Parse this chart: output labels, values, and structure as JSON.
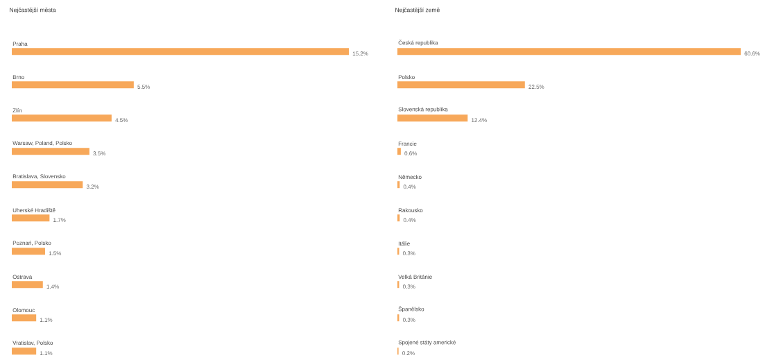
{
  "chart_data": [
    {
      "type": "bar",
      "orientation": "horizontal",
      "title": "Nejčastější města",
      "categories": [
        "Praha",
        "Brno",
        "Zlín",
        "Warsaw, Poland, Polsko",
        "Bratislava, Slovensko",
        "Uherské Hradiště",
        "Poznań, Polsko",
        "Ostrava",
        "Olomouc",
        "Vratislav, Polsko"
      ],
      "values": [
        15.2,
        5.5,
        4.5,
        3.5,
        3.2,
        1.7,
        1.5,
        1.4,
        1.1,
        1.1
      ],
      "value_labels": [
        "15.2%",
        "5.5%",
        "4.5%",
        "3.5%",
        "3.2%",
        "1.7%",
        "1.5%",
        "1.4%",
        "1.1%",
        "1.1%"
      ],
      "color": "#f7a85a"
    },
    {
      "type": "bar",
      "orientation": "horizontal",
      "title": "Nejčastější země",
      "categories": [
        "Česká republika",
        "Polsko",
        "Slovenská republika",
        "Francie",
        "Německo",
        "Rakousko",
        "Itálie",
        "Velká Británie",
        "Španělsko",
        "Spojené státy americké"
      ],
      "values": [
        60.6,
        22.5,
        12.4,
        0.6,
        0.4,
        0.4,
        0.3,
        0.3,
        0.3,
        0.2
      ],
      "value_labels": [
        "60.6%",
        "22.5%",
        "12.4%",
        "0.6%",
        "0.4%",
        "0.4%",
        "0.3%",
        "0.3%",
        "0.3%",
        "0.2%"
      ],
      "color": "#f7a85a"
    }
  ]
}
